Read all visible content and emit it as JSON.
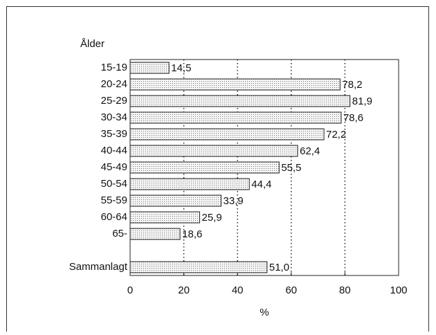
{
  "chart_data": {
    "type": "bar",
    "orientation": "horizontal",
    "category_axis_label": "Ålder",
    "xlabel": "%",
    "categories": [
      "15-19",
      "20-24",
      "25-29",
      "30-34",
      "35-39",
      "40-44",
      "45-49",
      "50-54",
      "55-59",
      "60-64",
      "65-",
      null,
      "Sammanlagt"
    ],
    "values": [
      14.5,
      78.2,
      81.9,
      78.6,
      72.2,
      62.4,
      55.5,
      44.4,
      33.9,
      25.9,
      18.6,
      null,
      51.0
    ],
    "value_labels": [
      "14,5",
      "78,2",
      "81,9",
      "78,6",
      "72,2",
      "62,4",
      "55,5",
      "44,4",
      "33,9",
      "25,9",
      "18,6",
      null,
      "51,0"
    ],
    "color": "#d8d8d8",
    "xlim": [
      0,
      100
    ],
    "xticks": [
      0,
      20,
      40,
      60,
      80,
      100
    ],
    "grid": true
  }
}
